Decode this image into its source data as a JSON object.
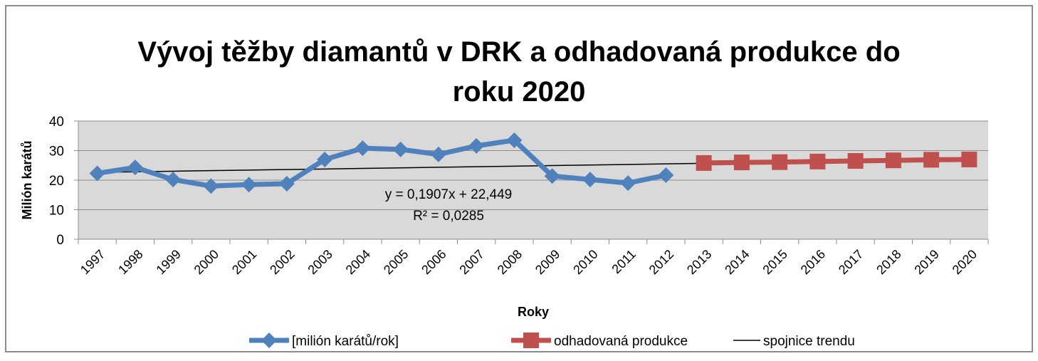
{
  "chart_data": {
    "type": "line",
    "title": "Vývoj těžby diamantů v DRK a odhadovaná produkce do roku 2020",
    "x_label": "Roky",
    "y_label": "Milión karátů",
    "categories": [
      "1997",
      "1998",
      "1999",
      "2000",
      "2001",
      "2002",
      "2003",
      "2004",
      "2005",
      "2006",
      "2007",
      "2008",
      "2009",
      "2010",
      "2011",
      "2012",
      "2013",
      "2014",
      "2015",
      "2016",
      "2017",
      "2018",
      "2019",
      "2020"
    ],
    "series": [
      {
        "name": "[milión karátů/rok]",
        "color": "#4f81bd",
        "marker": "diamond",
        "values": [
          22.3,
          24.3,
          20.2,
          18.0,
          18.5,
          18.8,
          27.0,
          30.8,
          30.4,
          28.7,
          31.6,
          33.5,
          21.4,
          20.2,
          19.0,
          21.7,
          null,
          null,
          null,
          null,
          null,
          null,
          null,
          null
        ]
      },
      {
        "name": "odhadovaná produkce",
        "color": "#c0504d",
        "marker": "square",
        "values": [
          null,
          null,
          null,
          null,
          null,
          null,
          null,
          null,
          null,
          null,
          null,
          null,
          null,
          null,
          null,
          null,
          25.8,
          26.0,
          26.1,
          26.3,
          26.5,
          26.7,
          26.9,
          27.0
        ]
      },
      {
        "name": "spojnice trendu",
        "color": "#000000",
        "marker": "none",
        "values": [
          22.64,
          22.83,
          23.02,
          23.21,
          23.4,
          23.59,
          23.78,
          23.97,
          24.17,
          24.36,
          24.55,
          24.74,
          24.93,
          25.12,
          25.31,
          25.5,
          25.69,
          25.88,
          26.07,
          26.26,
          26.45,
          26.65,
          26.84,
          27.03
        ]
      }
    ],
    "annotations": [
      "y = 0,1907x + 22,449",
      "R² = 0,0285"
    ],
    "ylim": [
      0,
      40
    ],
    "yticks": [
      0,
      10,
      20,
      30,
      40
    ],
    "grid": true,
    "legend": "bottom"
  }
}
